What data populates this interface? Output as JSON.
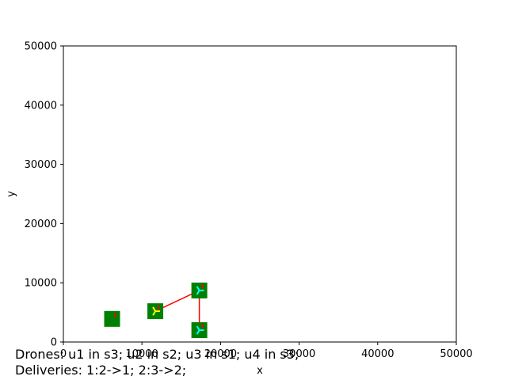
{
  "chart_data": {
    "type": "scatter",
    "title": "",
    "xlabel": "x",
    "ylabel": "y",
    "xlim": [
      0,
      50000
    ],
    "ylim": [
      0,
      50000
    ],
    "x_ticks": [
      0,
      10000,
      20000,
      30000,
      40000,
      50000
    ],
    "x_tick_labels": [
      "0",
      "10000",
      "20000",
      "30000",
      "40000",
      "50000"
    ],
    "y_ticks": [
      0,
      10000,
      20000,
      30000,
      40000,
      50000
    ],
    "y_tick_labels": [
      "0",
      "10000",
      "20000",
      "30000",
      "40000",
      "50000"
    ],
    "grid": false,
    "stations": [
      {
        "x": 6200,
        "y": 3900
      },
      {
        "x": 11700,
        "y": 5200
      },
      {
        "x": 17300,
        "y": 8700
      },
      {
        "x": 17300,
        "y": 2000
      }
    ],
    "routes": [
      {
        "from": 1,
        "to": 2
      },
      {
        "from": 2,
        "to": 3
      }
    ],
    "drones": [
      {
        "station": 1,
        "color": "#ffff00",
        "shape": "tri"
      },
      {
        "station": 2,
        "color": "#00ffff",
        "shape": "tri"
      },
      {
        "station": 3,
        "color": "#00ffff",
        "shape": "tri"
      }
    ],
    "colors": {
      "station": "#008000",
      "route": "#ff0000",
      "marker": "#ff0000"
    }
  },
  "status": {
    "drones_line": "Drones: u1 in s3; u2 in s2; u3 in s1; u4 in s3;",
    "deliveries_line": "Deliveries: 1:2->1; 2:3->2;"
  }
}
